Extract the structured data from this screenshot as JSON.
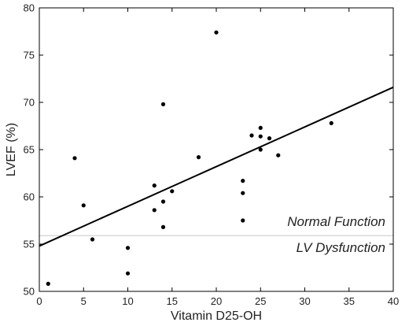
{
  "chart_data": {
    "type": "scatter",
    "title": "",
    "xlabel": "Vitamin D25-OH",
    "ylabel": "LVEF (%)",
    "xlim": [
      0,
      40
    ],
    "ylim": [
      50,
      80
    ],
    "xticks": [
      0,
      5,
      10,
      15,
      20,
      25,
      30,
      35,
      40
    ],
    "yticks": [
      50,
      55,
      60,
      65,
      70,
      75,
      80
    ],
    "grid": false,
    "points": [
      {
        "x": 1,
        "y": 50.8
      },
      {
        "x": 4,
        "y": 64.1
      },
      {
        "x": 5,
        "y": 59.1
      },
      {
        "x": 6,
        "y": 55.5
      },
      {
        "x": 10,
        "y": 54.6
      },
      {
        "x": 10,
        "y": 51.9
      },
      {
        "x": 13,
        "y": 61.2
      },
      {
        "x": 13,
        "y": 58.6
      },
      {
        "x": 14,
        "y": 69.8
      },
      {
        "x": 14,
        "y": 59.5
      },
      {
        "x": 14,
        "y": 56.8
      },
      {
        "x": 15,
        "y": 60.6
      },
      {
        "x": 18,
        "y": 64.2
      },
      {
        "x": 20,
        "y": 77.4
      },
      {
        "x": 23,
        "y": 61.7
      },
      {
        "x": 23,
        "y": 60.4
      },
      {
        "x": 23,
        "y": 57.5
      },
      {
        "x": 24,
        "y": 66.5
      },
      {
        "x": 25,
        "y": 67.3
      },
      {
        "x": 25,
        "y": 66.4
      },
      {
        "x": 25,
        "y": 65.0
      },
      {
        "x": 26,
        "y": 66.2
      },
      {
        "x": 27,
        "y": 64.4
      },
      {
        "x": 33,
        "y": 67.8
      }
    ],
    "regression_line": {
      "x": [
        0,
        40
      ],
      "y": [
        54.8,
        71.6
      ]
    },
    "threshold": {
      "y": 55.9
    },
    "annotations": {
      "above": "Normal Function",
      "below": "LV Dysfunction"
    }
  }
}
